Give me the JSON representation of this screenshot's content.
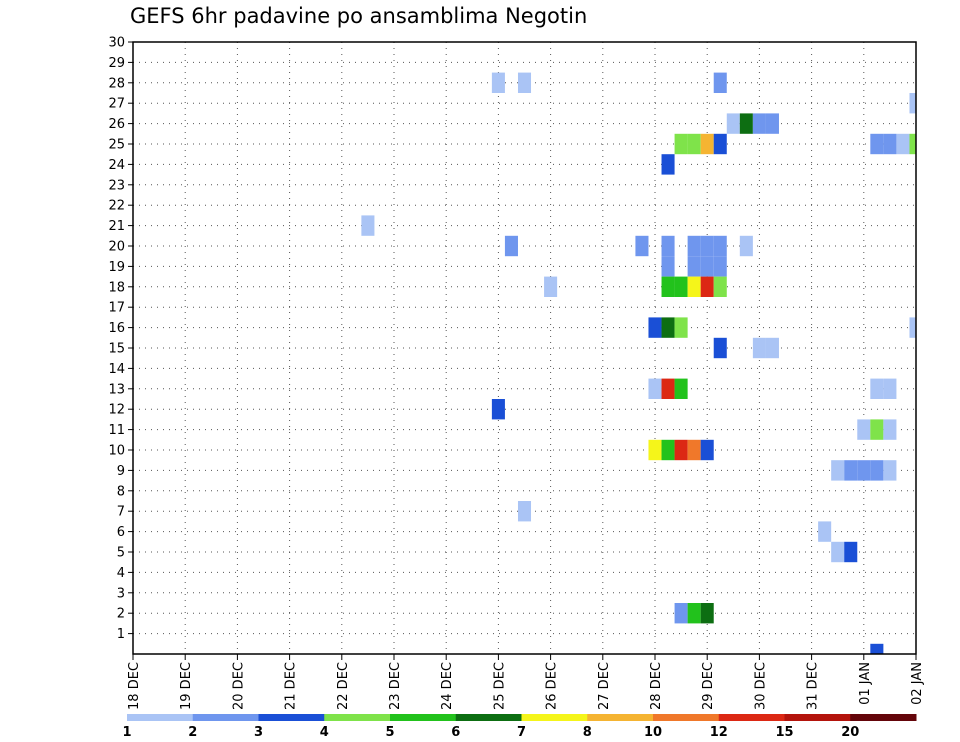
{
  "chart_data": {
    "type": "heatmap",
    "title": "GEFS 6hr padavine po ansamblima Negotin",
    "x_tick_labels": [
      "18 DEC",
      "19 DEC",
      "20 DEC",
      "21 DEC",
      "22 DEC",
      "23 DEC",
      "24 DEC",
      "25 DEC",
      "26 DEC",
      "27 DEC",
      "28 DEC",
      "29 DEC",
      "30 DEC",
      "31 DEC",
      "01 JAN",
      "02 JAN"
    ],
    "y_tick_labels": [
      "1",
      "2",
      "3",
      "4",
      "5",
      "6",
      "7",
      "8",
      "9",
      "10",
      "11",
      "12",
      "13",
      "14",
      "15",
      "16",
      "17",
      "18",
      "19",
      "20",
      "21",
      "22",
      "23",
      "24",
      "25",
      "26",
      "27",
      "28",
      "29",
      "30"
    ],
    "xlim_days": [
      0,
      15
    ],
    "ylim": [
      0,
      30
    ],
    "time_step_days": 0.25,
    "grid": true,
    "legend": {
      "placement": "bottom",
      "labels": [
        "1",
        "2",
        "3",
        "4",
        "5",
        "6",
        "7",
        "8",
        "10",
        "12",
        "15",
        "20"
      ],
      "colors": [
        "#aac4f5",
        "#6f96ee",
        "#1a4fd6",
        "#7fe34a",
        "#22c21c",
        "#0d6e12",
        "#f5f51a",
        "#f5b432",
        "#f0782a",
        "#dc2814",
        "#b4140c",
        "#64050a"
      ]
    },
    "cells": [
      {
        "member": 28,
        "x": 7.0,
        "level": 1
      },
      {
        "member": 28,
        "x": 7.5,
        "level": 1
      },
      {
        "member": 28,
        "x": 11.25,
        "level": 2
      },
      {
        "member": 27,
        "x": 15.0,
        "level": 1
      },
      {
        "member": 26,
        "x": 11.5,
        "level": 1
      },
      {
        "member": 26,
        "x": 11.75,
        "level": 6
      },
      {
        "member": 26,
        "x": 12.0,
        "level": 2
      },
      {
        "member": 26,
        "x": 12.25,
        "level": 2
      },
      {
        "member": 25,
        "x": 10.5,
        "level": 4
      },
      {
        "member": 25,
        "x": 10.75,
        "level": 4
      },
      {
        "member": 25,
        "x": 11.0,
        "level": 8
      },
      {
        "member": 25,
        "x": 11.25,
        "level": 3
      },
      {
        "member": 25,
        "x": 14.25,
        "level": 2
      },
      {
        "member": 25,
        "x": 14.5,
        "level": 2
      },
      {
        "member": 25,
        "x": 14.75,
        "level": 1
      },
      {
        "member": 25,
        "x": 15.0,
        "level": 4
      },
      {
        "member": 24,
        "x": 10.25,
        "level": 3
      },
      {
        "member": 21,
        "x": 4.5,
        "level": 1
      },
      {
        "member": 20,
        "x": 7.25,
        "level": 2
      },
      {
        "member": 20,
        "x": 9.75,
        "level": 2
      },
      {
        "member": 20,
        "x": 10.25,
        "level": 2
      },
      {
        "member": 20,
        "x": 10.75,
        "level": 2
      },
      {
        "member": 20,
        "x": 11.0,
        "level": 2
      },
      {
        "member": 20,
        "x": 11.25,
        "level": 2
      },
      {
        "member": 20,
        "x": 11.75,
        "level": 1
      },
      {
        "member": 19,
        "x": 10.25,
        "level": 2
      },
      {
        "member": 19,
        "x": 10.75,
        "level": 2
      },
      {
        "member": 19,
        "x": 11.0,
        "level": 2
      },
      {
        "member": 19,
        "x": 11.25,
        "level": 2
      },
      {
        "member": 18,
        "x": 8.0,
        "level": 1
      },
      {
        "member": 18,
        "x": 10.25,
        "level": 5
      },
      {
        "member": 18,
        "x": 10.5,
        "level": 5
      },
      {
        "member": 18,
        "x": 10.75,
        "level": 7
      },
      {
        "member": 18,
        "x": 11.0,
        "level": 10
      },
      {
        "member": 18,
        "x": 11.25,
        "level": 4
      },
      {
        "member": 16,
        "x": 10.0,
        "level": 3
      },
      {
        "member": 16,
        "x": 10.25,
        "level": 6
      },
      {
        "member": 16,
        "x": 10.5,
        "level": 4
      },
      {
        "member": 16,
        "x": 15.0,
        "level": 1
      },
      {
        "member": 15,
        "x": 11.25,
        "level": 3
      },
      {
        "member": 15,
        "x": 12.0,
        "level": 1
      },
      {
        "member": 15,
        "x": 12.25,
        "level": 1
      },
      {
        "member": 13,
        "x": 10.0,
        "level": 1
      },
      {
        "member": 13,
        "x": 10.25,
        "level": 10
      },
      {
        "member": 13,
        "x": 10.5,
        "level": 5
      },
      {
        "member": 13,
        "x": 14.25,
        "level": 1
      },
      {
        "member": 13,
        "x": 14.5,
        "level": 1
      },
      {
        "member": 12,
        "x": 7.0,
        "level": 3
      },
      {
        "member": 11,
        "x": 14.0,
        "level": 1
      },
      {
        "member": 11,
        "x": 14.25,
        "level": 4
      },
      {
        "member": 11,
        "x": 14.5,
        "level": 1
      },
      {
        "member": 10,
        "x": 10.0,
        "level": 7
      },
      {
        "member": 10,
        "x": 10.25,
        "level": 5
      },
      {
        "member": 10,
        "x": 10.5,
        "level": 10
      },
      {
        "member": 10,
        "x": 10.75,
        "level": 9
      },
      {
        "member": 10,
        "x": 11.0,
        "level": 3
      },
      {
        "member": 9,
        "x": 13.5,
        "level": 1
      },
      {
        "member": 9,
        "x": 13.75,
        "level": 2
      },
      {
        "member": 9,
        "x": 14.0,
        "level": 2
      },
      {
        "member": 9,
        "x": 14.25,
        "level": 2
      },
      {
        "member": 9,
        "x": 14.5,
        "level": 1
      },
      {
        "member": 7,
        "x": 7.5,
        "level": 1
      },
      {
        "member": 6,
        "x": 13.25,
        "level": 1
      },
      {
        "member": 5,
        "x": 13.5,
        "level": 1
      },
      {
        "member": 5,
        "x": 13.75,
        "level": 3
      },
      {
        "member": 2,
        "x": 10.5,
        "level": 2
      },
      {
        "member": 2,
        "x": 10.75,
        "level": 5
      },
      {
        "member": 2,
        "x": 11.0,
        "level": 6
      },
      {
        "member": 0,
        "x": 14.25,
        "level": 3
      }
    ]
  }
}
